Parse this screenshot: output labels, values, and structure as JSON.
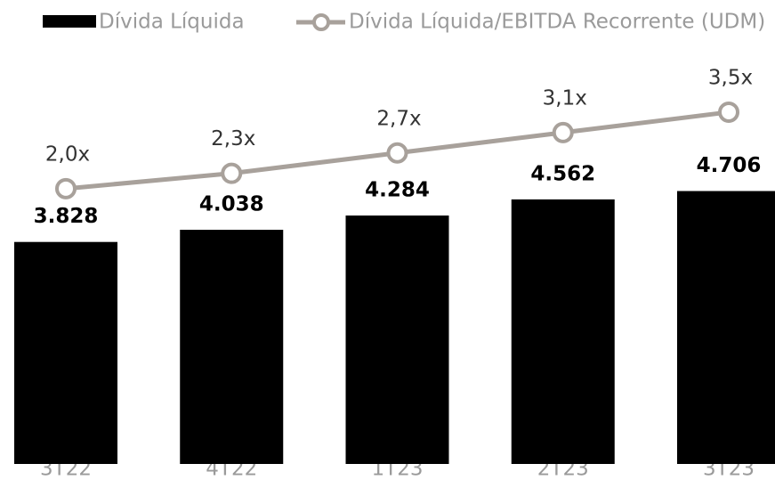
{
  "chart_data": {
    "type": "combo",
    "categories": [
      "3T22",
      "4T22",
      "1T23",
      "2T23",
      "3T23"
    ],
    "series": [
      {
        "name": "Dívida Líquida",
        "type": "bar",
        "color": "#000000",
        "values": [
          3828,
          4038,
          4284,
          4562,
          4706
        ],
        "value_labels": [
          "3.828",
          "4.038",
          "4.284",
          "4.562",
          "4.706"
        ]
      },
      {
        "name": "Dívida Líquida/EBITDA Recorrente (UDM)",
        "type": "line",
        "axis": "y2",
        "color": "#a8a19b",
        "values": [
          2.0,
          2.3,
          2.7,
          3.1,
          3.5
        ],
        "value_labels": [
          "2,0x",
          "2,3x",
          "2,7x",
          "3,1x",
          "3,5x"
        ]
      }
    ],
    "ylim": [
      0,
      8000
    ],
    "y2lim": [
      -3.4,
      5.7
    ],
    "grid": false,
    "legend": "top"
  }
}
